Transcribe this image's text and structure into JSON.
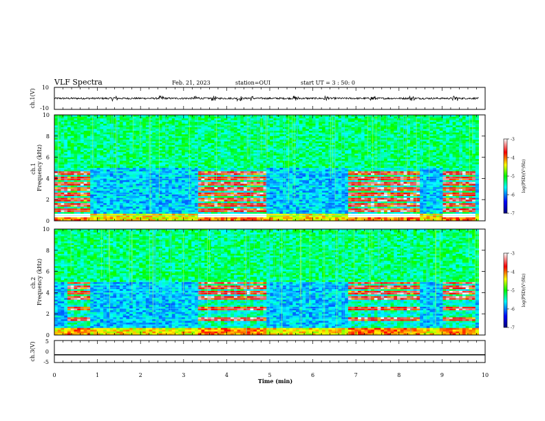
{
  "header": {
    "title": "VLF Spectra",
    "date": "Feb. 21, 2023",
    "station": "station=OUI",
    "start": "start UT =  3 : 50: 0"
  },
  "chart_data": [
    {
      "type": "line",
      "panel": "ch1-waveform",
      "ylabel": "ch.1(V)",
      "ytick_labels": [
        "10",
        "-10"
      ],
      "ylim": [
        -10,
        10
      ],
      "baseline_value": 0,
      "bursts_min": [
        1.4,
        2.5,
        3.3,
        3.7,
        4.3,
        4.55,
        5.6,
        6.3,
        7.4,
        8.3,
        9.3
      ]
    },
    {
      "type": "heatmap",
      "panel": "ch1-spectrogram",
      "ylabel": "ch.1\nFrequency (kHz)",
      "ylim": [
        0,
        10
      ],
      "yticks": [
        0,
        2,
        4,
        6,
        8,
        10
      ],
      "xlim": [
        0,
        10
      ],
      "colorbar": {
        "label": "log(PSD)(V²/Hz)",
        "range": [
          -7,
          -3
        ],
        "ticks": [
          "-3",
          "-4",
          "-5",
          "-6",
          "-7"
        ]
      },
      "active_intervals_min": [
        [
          0.0,
          0.8
        ],
        [
          3.3,
          4.9
        ],
        [
          6.8,
          8.5
        ],
        [
          9.0,
          9.8
        ]
      ],
      "bands_khz": [
        0.5,
        1.0,
        1.5,
        2.0,
        2.5,
        3.0,
        3.5,
        4.0,
        4.5
      ]
    },
    {
      "type": "heatmap",
      "panel": "ch2-spectrogram",
      "ylabel": "ch.2\nFrequency (kHz)",
      "ylim": [
        0,
        10
      ],
      "yticks": [
        0,
        2,
        4,
        6,
        8,
        10
      ],
      "xlim": [
        0,
        10
      ],
      "colorbar": {
        "label": "log(PSD)(V²/Hz)",
        "range": [
          -7,
          -3
        ],
        "ticks": [
          "-3",
          "-4",
          "-5",
          "-6",
          "-7"
        ]
      },
      "active_intervals_min": [
        [
          0.3,
          0.8
        ],
        [
          3.3,
          4.9
        ],
        [
          6.8,
          8.5
        ],
        [
          9.0,
          9.8
        ]
      ],
      "bands_khz": [
        1.5,
        2.5,
        3.5,
        4.0,
        4.5,
        5.0
      ]
    },
    {
      "type": "line",
      "panel": "ch3-waveform",
      "ylabel": "ch.3(V)",
      "ytick_labels": [
        "5",
        "0",
        "-5"
      ],
      "ylim": [
        -5,
        5
      ],
      "constant_value": -1.5
    }
  ],
  "xaxis": {
    "label": "Time (min)",
    "xlim": [
      0,
      10
    ],
    "ticks": [
      "0",
      "1",
      "2",
      "3",
      "4",
      "5",
      "6",
      "7",
      "8",
      "9",
      "10"
    ]
  }
}
